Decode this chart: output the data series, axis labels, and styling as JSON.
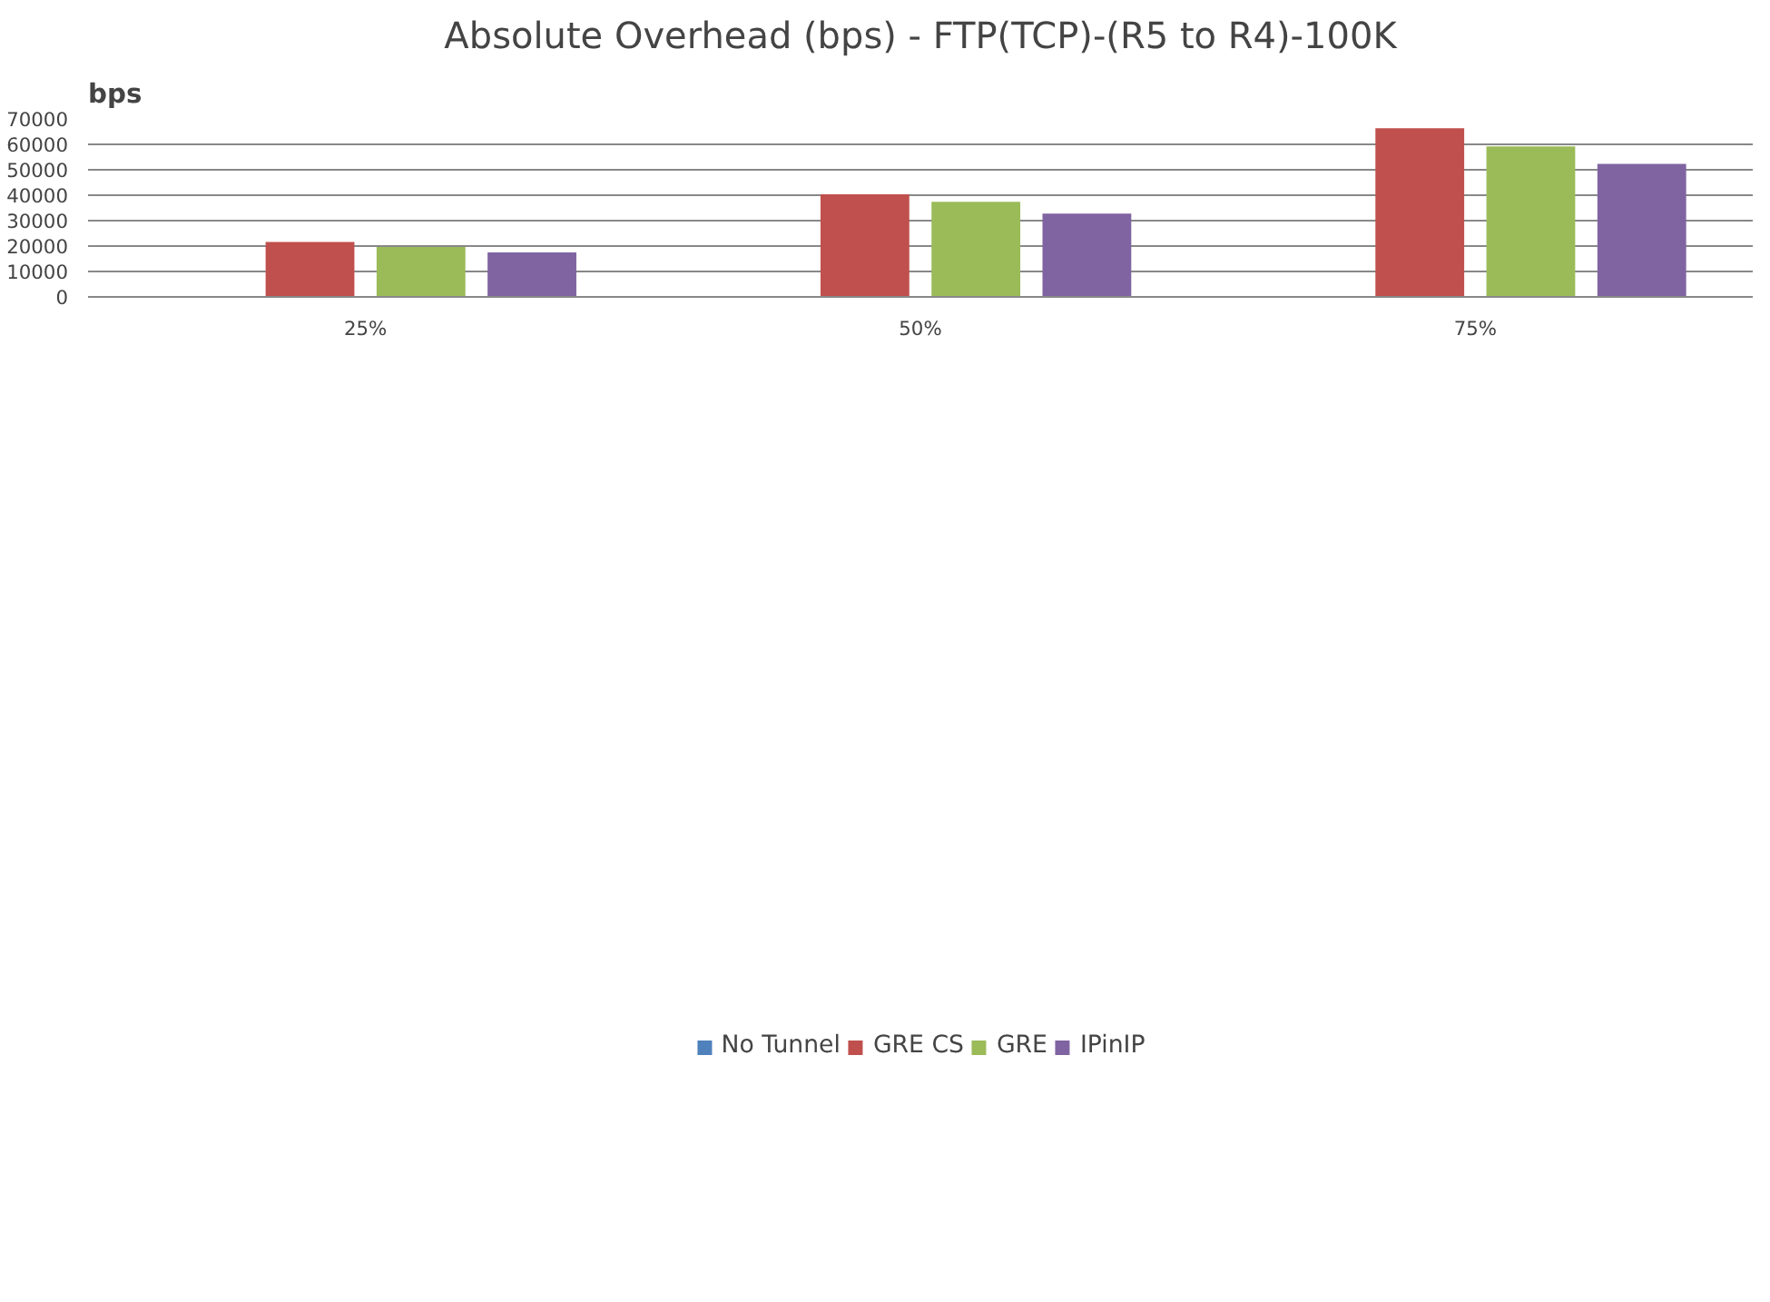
{
  "chart_data": {
    "type": "bar",
    "title": "Absolute Overhead (bps) - FTP(TCP)-(R5 to R4)-100K",
    "ylabel": "bps",
    "categories": [
      "25%",
      "50%",
      "75%"
    ],
    "series": [
      {
        "name": "No Tunnel",
        "color": "#4f81bd",
        "values": [
          0,
          0,
          0
        ]
      },
      {
        "name": "GRE CS",
        "color": "#c0504d",
        "values": [
          21600,
          40400,
          66300
        ]
      },
      {
        "name": "GRE",
        "color": "#9bbb59",
        "values": [
          19600,
          37400,
          59200
        ]
      },
      {
        "name": "IPinIP",
        "color": "#8064a2",
        "values": [
          17500,
          32800,
          52300
        ]
      }
    ],
    "ylim": [
      0,
      70000
    ],
    "yticks": [
      0,
      10000,
      20000,
      30000,
      40000,
      50000,
      60000,
      70000
    ],
    "grid": "y",
    "legend": "bottom"
  }
}
